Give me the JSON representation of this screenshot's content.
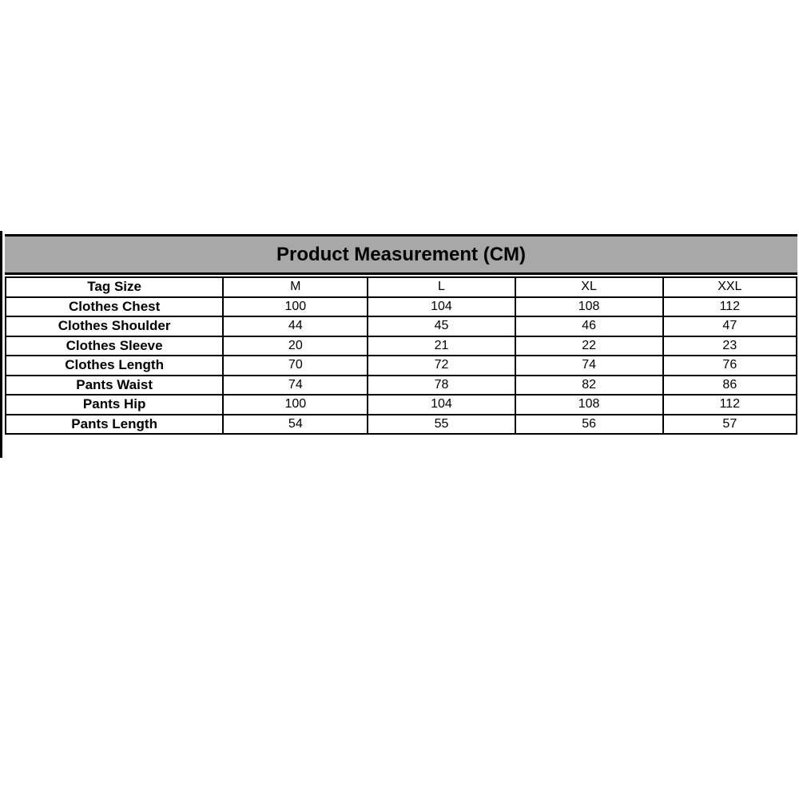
{
  "table": {
    "title": "Product Measurement (CM)",
    "unit": "CM",
    "columns": [
      "Tag Size",
      "M",
      "L",
      "XL",
      "XXL"
    ],
    "rows": [
      {
        "label": "Clothes Chest",
        "values": [
          "100",
          "104",
          "108",
          "112"
        ]
      },
      {
        "label": "Clothes Shoulder",
        "values": [
          "44",
          "45",
          "46",
          "47"
        ]
      },
      {
        "label": "Clothes Sleeve",
        "values": [
          "20",
          "21",
          "22",
          "23"
        ]
      },
      {
        "label": "Clothes Length",
        "values": [
          "70",
          "72",
          "74",
          "76"
        ]
      },
      {
        "label": "Pants Waist",
        "values": [
          "74",
          "78",
          "82",
          "86"
        ]
      },
      {
        "label": "Pants Hip",
        "values": [
          "100",
          "104",
          "108",
          "112"
        ]
      },
      {
        "label": "Pants Length",
        "values": [
          "54",
          "55",
          "56",
          "57"
        ]
      }
    ],
    "colors": {
      "header_bg": "#a8a8a8",
      "border": "#000000",
      "text": "#000000",
      "page_bg": "#ffffff"
    }
  },
  "chart_data": {
    "type": "table",
    "title": "Product Measurement (CM)",
    "categories": [
      "M",
      "L",
      "XL",
      "XXL"
    ],
    "series": [
      {
        "name": "Clothes Chest",
        "values": [
          100,
          104,
          108,
          112
        ]
      },
      {
        "name": "Clothes Shoulder",
        "values": [
          44,
          45,
          46,
          47
        ]
      },
      {
        "name": "Clothes Sleeve",
        "values": [
          20,
          21,
          22,
          23
        ]
      },
      {
        "name": "Clothes Length",
        "values": [
          70,
          72,
          74,
          76
        ]
      },
      {
        "name": "Pants Waist",
        "values": [
          74,
          78,
          82,
          86
        ]
      },
      {
        "name": "Pants Hip",
        "values": [
          100,
          104,
          108,
          112
        ]
      },
      {
        "name": "Pants Length",
        "values": [
          54,
          55,
          56,
          57
        ]
      }
    ],
    "row_header_label": "Tag Size",
    "legend_position": "none",
    "grid": true
  }
}
